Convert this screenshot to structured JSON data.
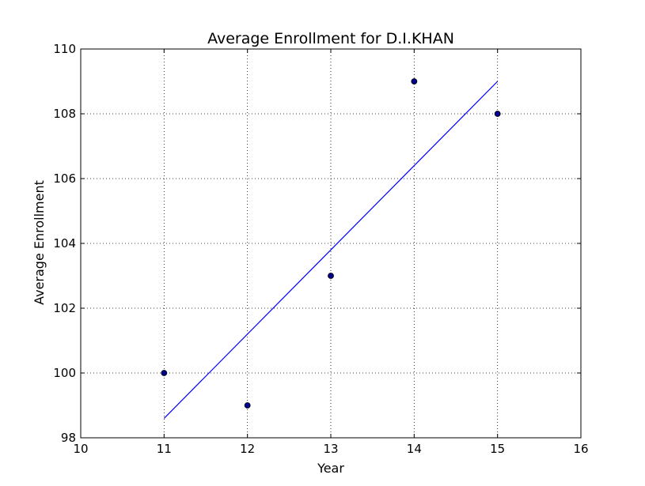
{
  "chart_data": {
    "type": "scatter",
    "title": "Average Enrollment for D.I.KHAN",
    "xlabel": "Year",
    "ylabel": "Average Enrollment",
    "xlim": [
      10,
      16
    ],
    "ylim": [
      98,
      110
    ],
    "xticks": [
      10,
      11,
      12,
      13,
      14,
      15,
      16
    ],
    "yticks": [
      98,
      100,
      102,
      104,
      106,
      108,
      110
    ],
    "grid": true,
    "series": [
      {
        "kind": "scatter",
        "color": "#00008b",
        "points": [
          {
            "x": 11,
            "y": 100
          },
          {
            "x": 12,
            "y": 99
          },
          {
            "x": 13,
            "y": 103
          },
          {
            "x": 14,
            "y": 109
          },
          {
            "x": 15,
            "y": 108
          }
        ]
      },
      {
        "kind": "line",
        "color": "#0000ff",
        "points": [
          {
            "x": 11,
            "y": 98.6
          },
          {
            "x": 15,
            "y": 109.0
          }
        ]
      }
    ]
  }
}
